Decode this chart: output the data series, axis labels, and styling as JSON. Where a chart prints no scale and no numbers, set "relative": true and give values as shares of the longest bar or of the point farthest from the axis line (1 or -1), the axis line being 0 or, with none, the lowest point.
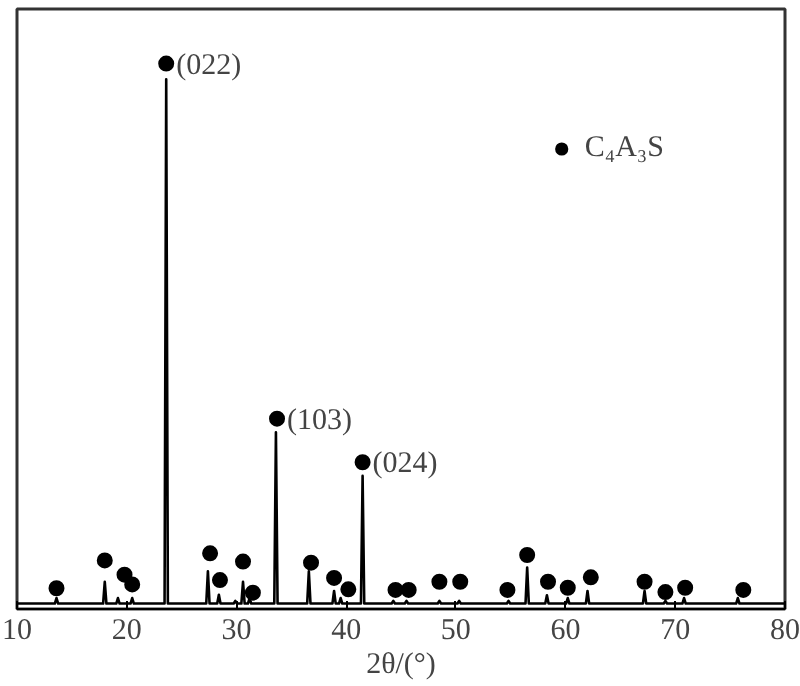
{
  "chart_data": {
    "type": "line",
    "relative": true,
    "xlabel": "2θ/(°)",
    "xlim": [
      10,
      80
    ],
    "xticks": [
      10,
      20,
      30,
      40,
      50,
      60,
      70,
      80
    ],
    "grid": false,
    "legend": "top right",
    "series": [
      {
        "color": "#000000",
        "x": [
          10,
          13.45,
          13.6,
          13.75,
          17.85,
          18.0,
          18.15,
          19.05,
          19.2,
          19.35,
          20.35,
          20.5,
          20.65,
          23.45,
          23.6,
          23.75,
          27.25,
          27.4,
          27.55,
          28.25,
          28.4,
          28.55,
          29.75,
          29.9,
          30.05,
          30.45,
          30.6,
          30.75,
          31.05,
          31.2,
          31.35,
          33.45,
          33.6,
          33.75,
          36.45,
          36.6,
          36.75,
          38.75,
          38.9,
          39.05,
          39.35,
          39.5,
          39.65,
          41.35,
          41.5,
          41.65,
          44.15,
          44.3,
          44.45,
          45.35,
          45.5,
          45.65,
          48.35,
          48.5,
          48.65,
          50.15,
          50.3,
          50.45,
          54.65,
          54.8,
          54.95,
          56.35,
          56.5,
          56.65,
          58.15,
          58.3,
          58.45,
          60.05,
          60.2,
          60.35,
          61.85,
          62.0,
          62.15,
          67.05,
          67.2,
          67.35,
          68.95,
          69.1,
          69.25,
          70.65,
          70.8,
          70.95,
          75.55,
          75.7,
          75.85,
          80
        ],
        "values": [
          0.01,
          0.01,
          0.02,
          0.01,
          0.01,
          0.05,
          0.01,
          0.01,
          0.02,
          0.01,
          0.01,
          0.02,
          0.01,
          0.01,
          0.971,
          0.01,
          0.01,
          0.069,
          0.01,
          0.01,
          0.026,
          0.01,
          0.01,
          0.015,
          0.01,
          0.01,
          0.05,
          0.01,
          0.01,
          0.02,
          0.01,
          0.01,
          0.324,
          0.01,
          0.01,
          0.069,
          0.01,
          0.01,
          0.033,
          0.01,
          0.01,
          0.02,
          0.01,
          0.01,
          0.244,
          0.01,
          0.01,
          0.015,
          0.01,
          0.01,
          0.015,
          0.01,
          0.01,
          0.015,
          0.01,
          0.01,
          0.015,
          0.01,
          0.01,
          0.015,
          0.01,
          0.01,
          0.076,
          0.01,
          0.01,
          0.025,
          0.01,
          0.01,
          0.02,
          0.01,
          0.01,
          0.033,
          0.01,
          0.01,
          0.033,
          0.01,
          0.01,
          0.015,
          0.01,
          0.01,
          0.02,
          0.01,
          0.01,
          0.02,
          0.01,
          0.01
        ]
      },
      {
        "type": "scatter",
        "name": "C₄A₃S",
        "color": "#000000",
        "marker": "circle",
        "x": [
          13.6,
          18.0,
          19.8,
          20.5,
          23.6,
          27.6,
          28.5,
          30.6,
          31.5,
          33.7,
          36.8,
          38.9,
          40.2,
          41.5,
          44.5,
          45.7,
          48.5,
          50.4,
          54.7,
          56.5,
          58.4,
          60.2,
          62.3,
          67.2,
          69.1,
          70.9,
          76.2
        ],
        "values": [
          0.038,
          0.089,
          0.063,
          0.045,
          1.0,
          0.102,
          0.053,
          0.087,
          0.03,
          0.349,
          0.085,
          0.057,
          0.036,
          0.269,
          0.035,
          0.035,
          0.05,
          0.05,
          0.035,
          0.099,
          0.05,
          0.039,
          0.058,
          0.05,
          0.031,
          0.039,
          0.035
        ]
      }
    ],
    "annotations": [
      {
        "text": "(022)",
        "x": 23.6,
        "y": 1.0
      },
      {
        "text": "(103)",
        "x": 33.7,
        "y": 0.349
      },
      {
        "text": "(024)",
        "x": 41.5,
        "y": 0.269
      }
    ]
  }
}
